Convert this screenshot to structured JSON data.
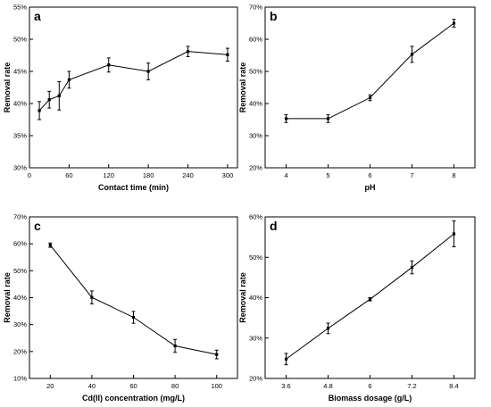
{
  "chart_data": [
    {
      "panel_label": "a",
      "type": "line",
      "xlabel": "Contact time (min)",
      "ylabel": "Removal rate",
      "xlim": [
        0,
        315
      ],
      "ylim": [
        30,
        55
      ],
      "xticks": [
        0,
        60,
        120,
        180,
        240,
        300
      ],
      "yticks": [
        30,
        35,
        40,
        45,
        50,
        55
      ],
      "ytick_format": "percent",
      "x": [
        15,
        30,
        45,
        60,
        120,
        180,
        240,
        300
      ],
      "y": [
        38.9,
        40.6,
        41.2,
        43.7,
        46.0,
        45.0,
        48.1,
        47.6
      ],
      "error": [
        1.4,
        1.3,
        2.2,
        1.3,
        1.1,
        1.3,
        0.8,
        1.0
      ],
      "grid": false
    },
    {
      "panel_label": "b",
      "type": "line",
      "xlabel": "pH",
      "ylabel": "Removal rate",
      "xlim": [
        3.5,
        8.5
      ],
      "ylim": [
        20,
        70
      ],
      "xticks": [
        4,
        5,
        6,
        7,
        8
      ],
      "yticks": [
        20,
        30,
        40,
        50,
        60,
        70
      ],
      "ytick_format": "percent",
      "x": [
        4,
        5,
        6,
        7,
        8
      ],
      "y": [
        35.3,
        35.3,
        41.8,
        55.3,
        65.0
      ],
      "error": [
        1.2,
        1.2,
        0.9,
        2.5,
        1.2
      ],
      "grid": false
    },
    {
      "panel_label": "c",
      "type": "line",
      "xlabel": "Cd(II) concentration (mg/L)",
      "ylabel": "Removal rate",
      "xlim": [
        10,
        110
      ],
      "ylim": [
        10,
        70
      ],
      "xticks": [
        20,
        40,
        60,
        80,
        100
      ],
      "yticks": [
        10,
        20,
        30,
        40,
        50,
        60,
        70
      ],
      "ytick_format": "percent",
      "x": [
        20,
        40,
        60,
        80,
        100
      ],
      "y": [
        59.5,
        40.1,
        32.7,
        22.1,
        18.9
      ],
      "error": [
        0.8,
        2.4,
        2.2,
        2.4,
        1.6
      ],
      "grid": false
    },
    {
      "panel_label": "d",
      "type": "line",
      "xlabel": "Biomass dosage (g/L)",
      "ylabel": "Removal rate",
      "xlim": [
        3.0,
        9.0
      ],
      "ylim": [
        20,
        60
      ],
      "xticks": [
        3.6,
        4.8,
        6.0,
        7.2,
        8.4
      ],
      "yticks": [
        20,
        30,
        40,
        50,
        60
      ],
      "ytick_format": "percent",
      "x": [
        3.6,
        4.8,
        6.0,
        7.2,
        8.4
      ],
      "y": [
        24.8,
        32.4,
        39.6,
        47.5,
        55.8
      ],
      "error": [
        1.4,
        1.3,
        0.4,
        1.6,
        3.2
      ],
      "grid": false
    }
  ]
}
